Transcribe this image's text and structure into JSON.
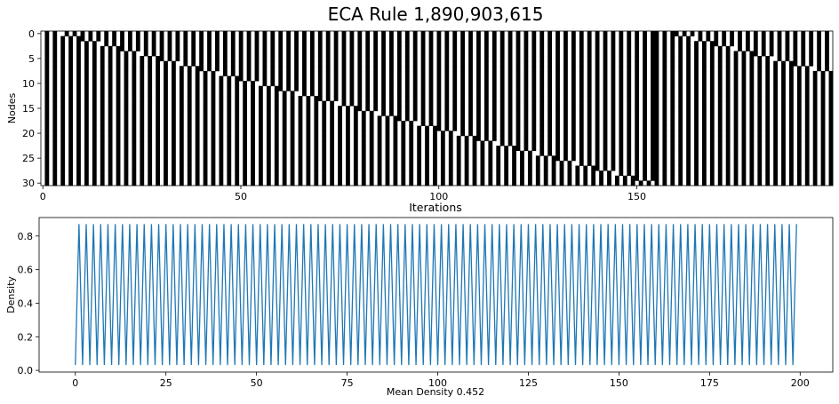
{
  "chart_data": [
    {
      "type": "heatmap",
      "title": "ECA Rule 1,890,903,615",
      "xlabel": "Iterations",
      "ylabel": "Nodes",
      "nodes": 31,
      "iterations": 200,
      "xlim": [
        0,
        199
      ],
      "ylim": [
        30,
        0
      ],
      "xticks": [
        0,
        50,
        100,
        150
      ],
      "yticks": [
        0,
        5,
        10,
        15,
        20,
        25,
        30
      ],
      "colormap": {
        "0": "#ffffff",
        "1": "#000000"
      },
      "pattern_description_values": {
        "alternation_period": 2,
        "defect_shift_per_iteration": 0.2
      }
    },
    {
      "type": "line",
      "title": "",
      "xlabel": "Mean Density 0.452",
      "ylabel": "Density",
      "xlim": [
        -10,
        209
      ],
      "ylim": [
        -0.01,
        0.91
      ],
      "xticks": [
        0,
        25,
        50,
        75,
        100,
        125,
        150,
        175,
        200
      ],
      "yticks": [
        0.0,
        0.2,
        0.4,
        0.6,
        0.8
      ],
      "series": [
        {
          "color": "#1f77b4",
          "x_start": 0,
          "x_end": 199,
          "values_even": 0.032,
          "values_odd": 0.871
        }
      ]
    }
  ]
}
